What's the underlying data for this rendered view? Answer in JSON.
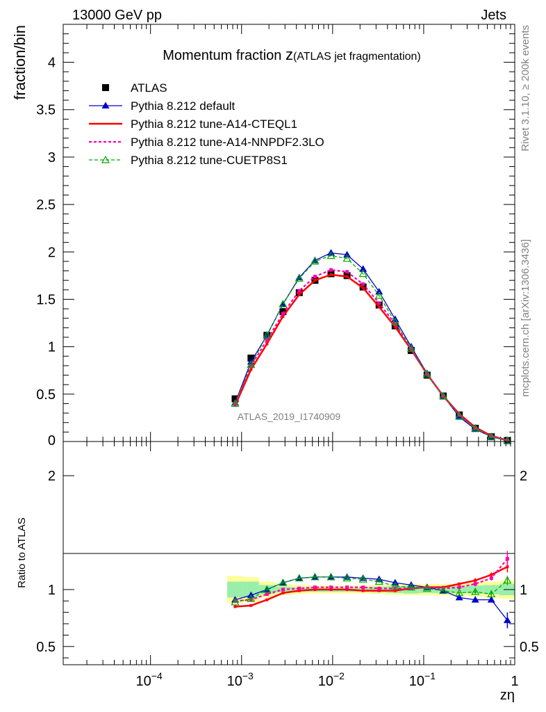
{
  "header": {
    "left": "13000 GeV pp",
    "right": "Jets"
  },
  "side_texts": {
    "rivet": "Rivet 3.1.10, ≥ 200k events",
    "mcplots": "mcplots.cern.ch [arXiv:1306.3436]"
  },
  "chart_data": [
    {
      "type": "line",
      "title_main": "Momentum fraction ",
      "title_var": "z",
      "title_sub": "(ATLAS jet fragmentation)",
      "ylabel": "fraction/bin",
      "xlabel": "zη",
      "watermark": "ATLAS_2019_I1740909",
      "xscale": "log",
      "xlim": [
        1.1e-05,
        1
      ],
      "ylim": [
        0,
        4.4
      ],
      "yticks": [
        0.5,
        1,
        1.5,
        2,
        2.5,
        3,
        3.5,
        4
      ],
      "ytick_labels": [
        "0.5",
        "1",
        "1.5",
        "2",
        "2.5",
        "3",
        "3.5",
        "4"
      ],
      "ytick_zero_label": "0",
      "x": [
        0.00085,
        0.00127,
        0.0019,
        0.00285,
        0.0043,
        0.0064,
        0.0096,
        0.0144,
        0.0216,
        0.0324,
        0.0486,
        0.0729,
        0.109,
        0.164,
        0.246,
        0.369,
        0.553,
        0.83
      ],
      "series": [
        {
          "name": "ATLAS",
          "color": "#000000",
          "style": "square",
          "values": [
            0.45,
            0.88,
            1.12,
            1.37,
            1.57,
            1.7,
            1.77,
            1.75,
            1.63,
            1.44,
            1.22,
            0.96,
            0.7,
            0.48,
            0.28,
            0.14,
            0.05,
            0.01
          ]
        },
        {
          "name": "Pythia 8.212 default",
          "color": "#0000cc",
          "style": "solid-tri",
          "values": [
            0.41,
            0.84,
            1.12,
            1.45,
            1.73,
            1.91,
            1.99,
            1.97,
            1.82,
            1.58,
            1.29,
            1.0,
            0.72,
            0.48,
            0.26,
            0.13,
            0.05,
            0.007
          ]
        },
        {
          "name": "Pythia 8.212 tune-A14-CTEQL1",
          "color": "#ff0000",
          "style": "thick",
          "values": [
            0.38,
            0.76,
            1.03,
            1.32,
            1.55,
            1.7,
            1.76,
            1.74,
            1.62,
            1.42,
            1.21,
            0.97,
            0.71,
            0.48,
            0.29,
            0.15,
            0.06,
            0.012
          ]
        },
        {
          "name": "Pythia 8.212 tune-A14-NNPDF2.3LO",
          "color": "#ff00aa",
          "style": "dotted",
          "values": [
            0.4,
            0.8,
            1.07,
            1.35,
            1.59,
            1.74,
            1.81,
            1.79,
            1.66,
            1.46,
            1.24,
            0.98,
            0.71,
            0.48,
            0.28,
            0.14,
            0.055,
            0.013
          ]
        },
        {
          "name": "Pythia 8.212 tune-CUETP8S1",
          "color": "#00aa00",
          "style": "dashed-open-tri",
          "values": [
            0.4,
            0.81,
            1.12,
            1.45,
            1.72,
            1.9,
            1.96,
            1.93,
            1.77,
            1.54,
            1.26,
            0.98,
            0.71,
            0.48,
            0.27,
            0.14,
            0.05,
            0.011
          ]
        }
      ]
    },
    {
      "type": "line",
      "ylabel": "Ratio to ATLAS",
      "xscale": "log",
      "xlim": [
        1.1e-05,
        1
      ],
      "ylim": [
        0.34,
        2.3
      ],
      "yticks": [
        0.5,
        1,
        2
      ],
      "ytick_labels": [
        "0.5",
        "1",
        "2"
      ],
      "xticks": [
        0.0001,
        0.001,
        0.01,
        0.1,
        1
      ],
      "xtick_labels": [
        {
          "base": "10",
          "exp": "−4"
        },
        {
          "base": "10",
          "exp": "−3"
        },
        {
          "base": "10",
          "exp": "−2"
        },
        {
          "base": "10",
          "exp": "−1"
        },
        {
          "base": "1",
          "exp": ""
        }
      ],
      "band_inner": [
        0.07,
        0.07,
        0.04,
        0.025,
        0.02,
        0.02,
        0.02,
        0.02,
        0.02,
        0.025,
        0.03,
        0.035,
        0.03,
        0.03,
        0.03,
        0.035,
        0.04,
        0.05
      ],
      "band_outer": [
        0.12,
        0.11,
        0.07,
        0.05,
        0.04,
        0.035,
        0.035,
        0.035,
        0.035,
        0.04,
        0.045,
        0.05,
        0.05,
        0.05,
        0.05,
        0.06,
        0.07,
        0.08
      ],
      "series": [
        {
          "name": "Pythia 8.212 default",
          "color": "#0000cc",
          "style": "solid-tri",
          "values": [
            0.91,
            0.95,
            1.0,
            1.06,
            1.1,
            1.11,
            1.11,
            1.11,
            1.1,
            1.09,
            1.06,
            1.04,
            1.02,
            0.99,
            0.93,
            0.91,
            0.91,
            0.73
          ],
          "err": [
            0.02,
            0.01,
            0.01,
            0.01,
            0.01,
            0.01,
            0.01,
            0.01,
            0.01,
            0.01,
            0.01,
            0.01,
            0.01,
            0.01,
            0.01,
            0.01,
            0.02,
            0.07
          ]
        },
        {
          "name": "Pythia 8.212 tune-A14-CTEQL1",
          "color": "#ff0000",
          "style": "thick",
          "values": [
            0.85,
            0.86,
            0.91,
            0.97,
            0.99,
            1.0,
            1.0,
            1.0,
            0.99,
            0.99,
            0.99,
            1.01,
            1.02,
            1.02,
            1.05,
            1.08,
            1.13,
            1.2
          ],
          "err": [
            0.01,
            0.01,
            0.01,
            0.01,
            0.01,
            0.01,
            0.01,
            0.01,
            0.01,
            0.01,
            0.01,
            0.01,
            0.01,
            0.01,
            0.01,
            0.02,
            0.02,
            0.05
          ]
        },
        {
          "name": "Pythia 8.212 tune-A14-NNPDF2.3LO",
          "color": "#ff00aa",
          "style": "dotted",
          "values": [
            0.9,
            0.91,
            0.96,
            1.0,
            1.01,
            1.02,
            1.02,
            1.02,
            1.02,
            1.01,
            1.01,
            1.01,
            1.02,
            1.01,
            1.02,
            1.05,
            1.1,
            1.27
          ],
          "err": [
            0.01,
            0.01,
            0.01,
            0.01,
            0.01,
            0.01,
            0.01,
            0.01,
            0.01,
            0.01,
            0.01,
            0.01,
            0.01,
            0.01,
            0.01,
            0.02,
            0.02,
            0.07
          ]
        },
        {
          "name": "Pythia 8.212 tune-CUETP8S1",
          "color": "#00aa00",
          "style": "dashed-open-tri",
          "values": [
            0.89,
            0.92,
            1.0,
            1.06,
            1.1,
            1.11,
            1.11,
            1.1,
            1.09,
            1.07,
            1.03,
            1.02,
            1.01,
            0.99,
            0.97,
            0.98,
            0.96,
            1.08
          ],
          "err": [
            0.01,
            0.01,
            0.01,
            0.01,
            0.01,
            0.01,
            0.01,
            0.01,
            0.01,
            0.01,
            0.01,
            0.01,
            0.01,
            0.01,
            0.01,
            0.02,
            0.02,
            0.04
          ]
        }
      ]
    }
  ]
}
